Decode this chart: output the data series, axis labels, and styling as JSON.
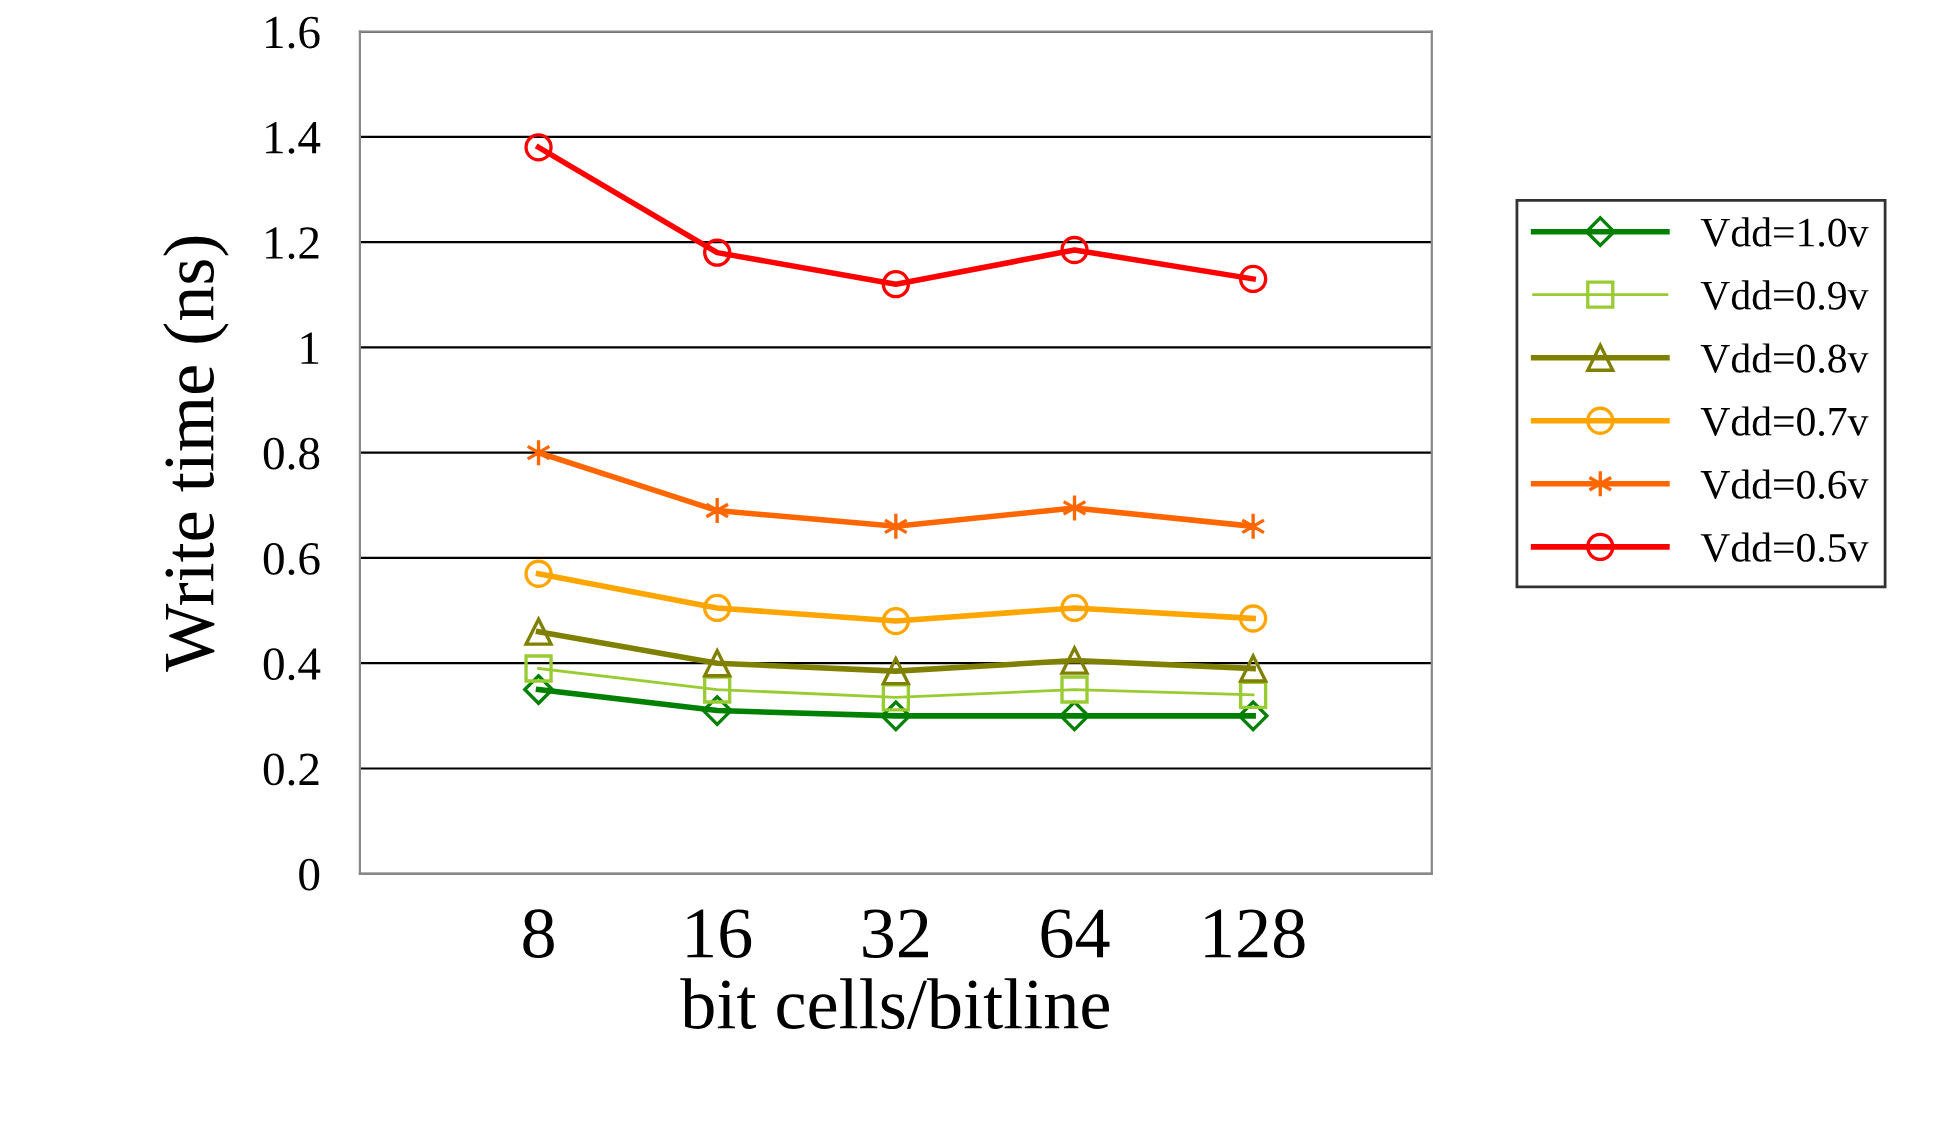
{
  "chart_data": {
    "type": "line",
    "xlabel": "bit cells/bitline",
    "ylabel": "Write time (ns)",
    "categories": [
      "8",
      "16",
      "32",
      "64",
      "128"
    ],
    "ylim": [
      0,
      1.6
    ],
    "yticks": [
      {
        "value": 0,
        "label": "0"
      },
      0.2,
      0.4,
      0.6,
      0.8,
      {
        "value": 1,
        "label": "1"
      },
      1.2,
      1.4,
      1.6
    ],
    "grid": "y",
    "legend": "right",
    "series": [
      {
        "name": "Vdd=1.0v",
        "color": "#008000",
        "marker": "diamond",
        "values": [
          0.35,
          0.31,
          0.3,
          0.3,
          0.3
        ]
      },
      {
        "name": "Vdd=0.9v",
        "color": "#99cc33",
        "marker": "square",
        "values": [
          0.39,
          0.35,
          0.335,
          0.35,
          0.34
        ]
      },
      {
        "name": "Vdd=0.8v",
        "color": "#808000",
        "marker": "triangle",
        "values": [
          0.46,
          0.4,
          0.385,
          0.405,
          0.39
        ]
      },
      {
        "name": "Vdd=0.7v",
        "color": "#ffa500",
        "marker": "circle",
        "values": [
          0.57,
          0.505,
          0.48,
          0.505,
          0.485
        ]
      },
      {
        "name": "Vdd=0.6v",
        "color": "#ff6600",
        "marker": "cross",
        "values": [
          0.8,
          0.69,
          0.66,
          0.695,
          0.66
        ]
      },
      {
        "name": "Vdd=0.5v",
        "color": "#ff0000",
        "marker": "circle",
        "values": [
          1.38,
          1.18,
          1.12,
          1.185,
          1.13
        ]
      }
    ]
  }
}
